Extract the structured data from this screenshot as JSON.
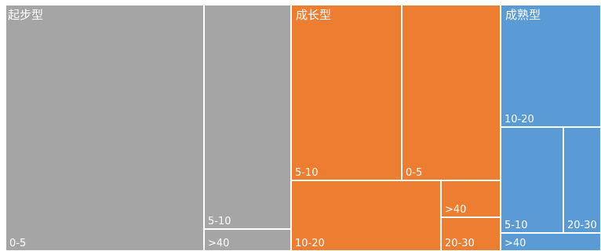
{
  "chart_data": {
    "type": "treemap",
    "groups": [
      {
        "name": "起步型",
        "color": "#A5A5A5",
        "children": [
          {
            "label": "0-5",
            "value": 80
          },
          {
            "label": "5-10",
            "value": 25
          },
          {
            "label": ">40",
            "value": 3
          }
        ]
      },
      {
        "name": "成长型",
        "color": "#ED7D31",
        "children": [
          {
            "label": "5-10",
            "value": 24
          },
          {
            "label": "0-5",
            "value": 22
          },
          {
            "label": "10-20",
            "value": 14
          },
          {
            "label": ">40",
            "value": 3
          },
          {
            "label": "20-30",
            "value": 3
          }
        ]
      },
      {
        "name": "成熟型",
        "color": "#5B9BD5",
        "children": [
          {
            "label": "10-20",
            "value": 20
          },
          {
            "label": "5-10",
            "value": 10
          },
          {
            "label": "20-30",
            "value": 3
          },
          {
            "label": ">40",
            "value": 3
          }
        ]
      }
    ]
  }
}
